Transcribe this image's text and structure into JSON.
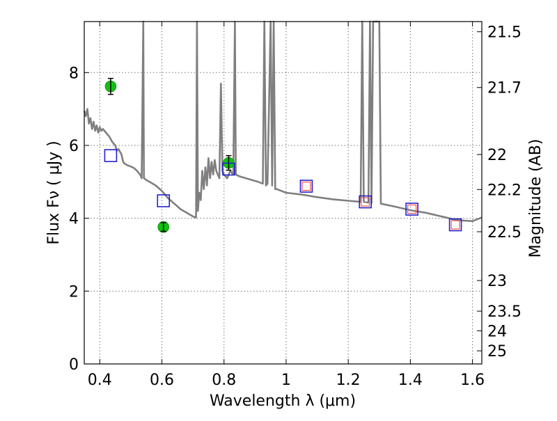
{
  "chart_data": {
    "type": "scatter",
    "title": "",
    "xlabel": "Wavelength  λ (μm)",
    "ylabel": "Flux  Fν  ( μJy )",
    "ylabel_right": "Magnitude (AB)",
    "xlim": [
      0.35,
      1.63
    ],
    "ylim": [
      0,
      9.4
    ],
    "grid": true,
    "x_ticks": [
      0.4,
      0.6,
      0.8,
      1.0,
      1.2,
      1.4,
      1.6
    ],
    "x_tick_labels": [
      "0.4",
      "0.6",
      "0.8",
      "1",
      "1.2",
      "1.4",
      "1.6"
    ],
    "y_ticks": [
      0,
      2,
      4,
      6,
      8
    ],
    "y_tick_labels": [
      "0",
      "2",
      "4",
      "6",
      "8"
    ],
    "magnitude_ticks": [
      {
        "label": "21.5",
        "flux": 9.12
      },
      {
        "label": "21.7",
        "flux": 7.59
      },
      {
        "label": "22",
        "flux": 5.75
      },
      {
        "label": "22.2",
        "flux": 4.79
      },
      {
        "label": "22.5",
        "flux": 3.63
      },
      {
        "label": "23",
        "flux": 2.29
      },
      {
        "label": "23.5",
        "flux": 1.45
      },
      {
        "label": "24",
        "flux": 0.91
      },
      {
        "label": "25",
        "flux": 0.36
      }
    ],
    "series": [
      {
        "kind": "model_spectrum",
        "color": "#7f7f7f",
        "points": [
          [
            0.35,
            6.95
          ],
          [
            0.355,
            6.8
          ],
          [
            0.36,
            7.0
          ],
          [
            0.365,
            6.6
          ],
          [
            0.37,
            6.75
          ],
          [
            0.375,
            6.45
          ],
          [
            0.38,
            6.65
          ],
          [
            0.385,
            6.4
          ],
          [
            0.39,
            6.55
          ],
          [
            0.395,
            6.35
          ],
          [
            0.4,
            6.5
          ],
          [
            0.405,
            6.4
          ],
          [
            0.41,
            6.45
          ],
          [
            0.42,
            6.35
          ],
          [
            0.43,
            6.25
          ],
          [
            0.44,
            6.1
          ],
          [
            0.45,
            6.0
          ],
          [
            0.455,
            5.85
          ],
          [
            0.46,
            5.9
          ],
          [
            0.47,
            5.75
          ],
          [
            0.475,
            5.55
          ],
          [
            0.48,
            5.5
          ],
          [
            0.49,
            5.45
          ],
          [
            0.5,
            5.42
          ],
          [
            0.51,
            5.38
          ],
          [
            0.52,
            5.3
          ],
          [
            0.53,
            5.2
          ],
          [
            0.535,
            5.1
          ],
          [
            0.54,
            9.4
          ],
          [
            0.542,
            5.1
          ],
          [
            0.55,
            5.05
          ],
          [
            0.56,
            5.0
          ],
          [
            0.58,
            4.9
          ],
          [
            0.6,
            4.75
          ],
          [
            0.62,
            4.55
          ],
          [
            0.64,
            4.4
          ],
          [
            0.66,
            4.25
          ],
          [
            0.68,
            4.15
          ],
          [
            0.7,
            4.05
          ],
          [
            0.71,
            4.02
          ],
          [
            0.713,
            9.4
          ],
          [
            0.716,
            4.2
          ],
          [
            0.72,
            4.7
          ],
          [
            0.725,
            4.5
          ],
          [
            0.73,
            5.3
          ],
          [
            0.735,
            4.8
          ],
          [
            0.74,
            5.4
          ],
          [
            0.745,
            4.9
          ],
          [
            0.75,
            5.65
          ],
          [
            0.755,
            5.1
          ],
          [
            0.76,
            5.55
          ],
          [
            0.765,
            5.2
          ],
          [
            0.77,
            5.6
          ],
          [
            0.775,
            5.3
          ],
          [
            0.78,
            5.2
          ],
          [
            0.785,
            5.1
          ],
          [
            0.79,
            7.7
          ],
          [
            0.795,
            5.3
          ],
          [
            0.8,
            5.2
          ],
          [
            0.81,
            5.1
          ],
          [
            0.82,
            5.3
          ],
          [
            0.83,
            5.2
          ],
          [
            0.835,
            9.4
          ],
          [
            0.838,
            5.2
          ],
          [
            0.85,
            5.15
          ],
          [
            0.87,
            5.1
          ],
          [
            0.89,
            5.05
          ],
          [
            0.91,
            5.0
          ],
          [
            0.925,
            4.95
          ],
          [
            0.93,
            9.4
          ],
          [
            0.935,
            4.9
          ],
          [
            0.94,
            4.95
          ],
          [
            0.95,
            9.4
          ],
          [
            0.955,
            4.9
          ],
          [
            0.96,
            9.4
          ],
          [
            0.965,
            4.8
          ],
          [
            0.97,
            4.8
          ],
          [
            1.0,
            4.7
          ],
          [
            1.05,
            4.65
          ],
          [
            1.1,
            4.58
          ],
          [
            1.15,
            4.52
          ],
          [
            1.2,
            4.48
          ],
          [
            1.24,
            4.45
          ],
          [
            1.245,
            9.4
          ],
          [
            1.25,
            4.45
          ],
          [
            1.265,
            4.43
          ],
          [
            1.27,
            9.4
          ],
          [
            1.275,
            4.42
          ],
          [
            1.28,
            9.4
          ],
          [
            1.3,
            9.4
          ],
          [
            1.305,
            4.4
          ],
          [
            1.35,
            4.32
          ],
          [
            1.4,
            4.22
          ],
          [
            1.45,
            4.15
          ],
          [
            1.5,
            4.05
          ],
          [
            1.55,
            3.95
          ],
          [
            1.6,
            3.92
          ],
          [
            1.63,
            4.02
          ]
        ]
      },
      {
        "kind": "observed_photometry",
        "color": "#11c011",
        "points": [
          {
            "x": 0.435,
            "y": 7.62,
            "err": 0.22
          },
          {
            "x": 0.605,
            "y": 3.76,
            "err": 0.12
          },
          {
            "x": 0.815,
            "y": 5.52,
            "err": 0.2
          }
        ]
      },
      {
        "kind": "model_photometry",
        "color": "#2222cc",
        "points": [
          {
            "x": 0.435,
            "y": 5.72
          },
          {
            "x": 0.605,
            "y": 4.48
          },
          {
            "x": 0.815,
            "y": 5.35
          },
          {
            "x": 1.065,
            "y": 4.88
          },
          {
            "x": 1.255,
            "y": 4.45
          },
          {
            "x": 1.405,
            "y": 4.25
          },
          {
            "x": 1.545,
            "y": 3.82
          }
        ]
      },
      {
        "kind": "model_photometry_inner",
        "color": "#ff4d4d",
        "points": [
          {
            "x": 1.065,
            "y": 4.88
          },
          {
            "x": 1.255,
            "y": 4.45
          },
          {
            "x": 1.405,
            "y": 4.25
          },
          {
            "x": 1.545,
            "y": 3.82
          }
        ]
      }
    ]
  }
}
